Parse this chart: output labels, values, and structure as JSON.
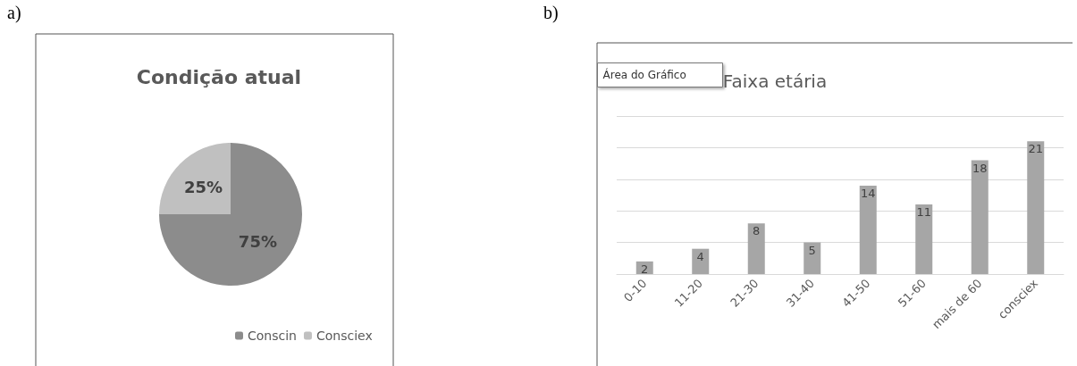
{
  "chart_data": [
    {
      "type": "pie",
      "title": "Condição atual",
      "categories": [
        "Conscin",
        "Consciex"
      ],
      "values": [
        75,
        25
      ],
      "colors": [
        "#8c8c8c",
        "#c0c0c0"
      ],
      "value_labels": [
        "75%",
        "25%"
      ],
      "legend": "bottom",
      "annotations": [
        "a)"
      ]
    },
    {
      "type": "bar",
      "title": "Faixa etária",
      "categories": [
        "0-10",
        "11-20",
        "21-30",
        "31-40",
        "41-50",
        "51-60",
        "mais de 60",
        "consciex"
      ],
      "values": [
        2,
        4,
        8,
        5,
        14,
        11,
        18,
        21
      ],
      "color": "#a6a6a6",
      "data_labels": true,
      "ylim": [
        0,
        25
      ],
      "yticks": [
        {
          "value": 0,
          "label": null
        },
        {
          "value": 5,
          "label": null
        },
        {
          "value": 10,
          "label": null
        },
        {
          "value": 15,
          "label": null
        },
        {
          "value": 20,
          "label": null
        },
        {
          "value": 25,
          "label": null
        }
      ],
      "grid": "y",
      "tick_labels": "x",
      "annotations": [
        "b)",
        "Área do Gráfico"
      ]
    }
  ]
}
